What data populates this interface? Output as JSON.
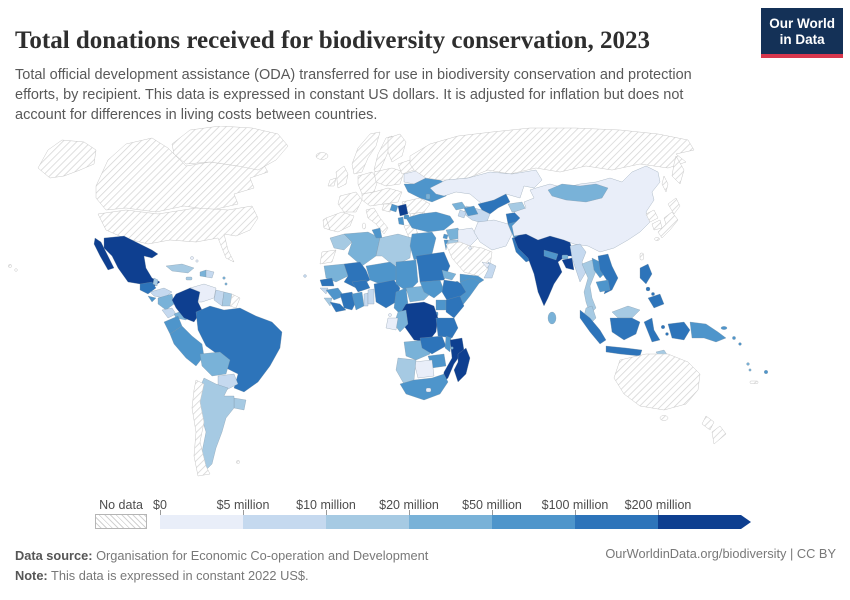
{
  "header": {
    "title": "Total donations received for biodiversity conservation, 2023",
    "subtitle": "Total official development assistance (ODA) transferred for use in biodiversity conservation and protection efforts, by recipient. This data is expressed in constant US dollars. It is adjusted for inflation but does not account for differences in living costs between countries.",
    "logo": {
      "line1": "Our World",
      "line2": "in Data",
      "bg_color": "#143157",
      "accent_color": "#d8374d"
    }
  },
  "footer": {
    "source_label": "Data source:",
    "source_text": " Organisation for Economic Co-operation and Development",
    "note_label": "Note:",
    "note_text": " This data is expressed in constant 2022 US$.",
    "link": "OurWorldinData.org/biodiversity | CC BY"
  },
  "chart_data": {
    "type": "choropleth",
    "title": "Total donations received for biodiversity conservation, 2023",
    "year": "2023",
    "unit": "constant 2022 US$",
    "projection": "world equirectangular",
    "legend": {
      "no_data_label": "No data",
      "no_data_style": "diagonal-hatch",
      "bins": [
        {
          "label": "$0",
          "min_usd": 0,
          "color": "#e9eef9"
        },
        {
          "label": "$5 million",
          "min_usd": 5000000,
          "color": "#c5d9ef"
        },
        {
          "label": "$10 million",
          "min_usd": 10000000,
          "color": "#a6cae3"
        },
        {
          "label": "$20 million",
          "min_usd": 20000000,
          "color": "#79b2d8"
        },
        {
          "label": "$50 million",
          "min_usd": 50000000,
          "color": "#4e95cb"
        },
        {
          "label": "$100 million",
          "min_usd": 100000000,
          "color": "#2d74ba"
        },
        {
          "label": "$200 million",
          "min_usd": 200000000,
          "color": "#0e3f90"
        }
      ]
    },
    "countries": {
      "United States": -1,
      "Canada": -1,
      "Greenland": -1,
      "Iceland": -1,
      "Norway": -1,
      "Sweden": -1,
      "Finland": -1,
      "Denmark": -1,
      "United Kingdom": -1,
      "Ireland": -1,
      "France": -1,
      "Spain": -1,
      "Portugal": -1,
      "Germany": -1,
      "Poland": -1,
      "Central Europe": -1,
      "Croatia": -1,
      "Baltic states": -1,
      "Italy": -1,
      "Greece": -1,
      "Romania": -1,
      "Bulgaria": -1,
      "Russia": -1,
      "Saudi Arabia": -1,
      "Japan": -1,
      "North Korea": -1,
      "South Korea": -1,
      "Taiwan": -1,
      "Australia": -1,
      "New Zealand": -1,
      "Chile": -1,
      "French Guiana": -1,
      "Western Sahara": -1,
      "New Caledonia": -1,
      "Falkland Islands": -1,
      "Kazakhstan": 0,
      "China": 0,
      "Iran": 0,
      "Iraq": 0,
      "Venezuela": 0,
      "Botswana": 0,
      "Gabon": 0,
      "Equatorial Guinea": 0,
      "Belarus": 0,
      "United Arab Emirates": 0,
      "Kuwait": 0,
      "Lesotho": 0,
      "Bahamas": 0,
      "Turkmenistan": 1,
      "Myanmar": 1,
      "Honduras": 1,
      "Costa Rica": 1,
      "Dominican Republic": 1,
      "Guyana": 1,
      "Paraguay": 1,
      "Oman": 1,
      "Guinea-Bissau": 1,
      "Togo": 1,
      "Benin": 1,
      "Armenia": 1,
      "Cape Verde": 1,
      "Morocco": 2,
      "Libya": 2,
      "Cuba": 2,
      "Jamaica": 2,
      "Trinidad and Tobago": 2,
      "Suriname": 2,
      "Uruguay": 2,
      "Argentina": 2,
      "Namibia": 2,
      "Sierra Leone": 2,
      "Thailand": 2,
      "Malaysia": 2,
      "Kyrgyzstan": 2,
      "Belize": 2,
      "Timor-Leste": 2,
      "Jordan": 2,
      "Algeria": 3,
      "Mauritania": 3,
      "Syria": 3,
      "Georgia": 3,
      "Moldova": 3,
      "Bolivia": 3,
      "Nicaragua": 3,
      "Panama": 3,
      "Haiti": 3,
      "Bhutan": 3,
      "Sri Lanka": 3,
      "Mongolia": 3,
      "Central African Republic": 3,
      "Republic of the Congo": 3,
      "Angola": 3,
      "Eritrea": 3,
      "Burundi": 3,
      "Comoros": 3,
      "Vanuatu": 3,
      "Tunisia": 4,
      "Egypt": 4,
      "Turkey": 4,
      "Ukraine": 4,
      "Azerbaijan": 4,
      "Lebanon": 4,
      "Israel": 4,
      "Yemen": 4,
      "Afghanistan": 4,
      "Nepal": 4,
      "Laos": 4,
      "Cambodia": 4,
      "Niger": 4,
      "Chad": 4,
      "South Sudan": 4,
      "Somalia": 4,
      "Djibouti": 4,
      "Uganda": 4,
      "Rwanda": 4,
      "Ghana": 4,
      "Guinea": 4,
      "Cameroon": 4,
      "Malawi": 4,
      "Zimbabwe": 4,
      "South Africa": 4,
      "El Salvador": 4,
      "Bosnia and Herzegovina": 4,
      "Albania": 4,
      "North Macedonia": 4,
      "Papua New Guinea": 4,
      "Solomon Islands": 4,
      "Fiji": 4,
      "Ecuador": 4,
      "Peru": 4,
      "Guatemala": 5,
      "Brazil": 5,
      "Pakistan": 5,
      "Uzbekistan": 5,
      "Tajikistan": 5,
      "Vietnam": 5,
      "Indonesia": 5,
      "Philippines": 5,
      "Mali": 5,
      "Senegal": 5,
      "Burkina Faso": 5,
      "Cote d'Ivoire": 5,
      "Liberia": 5,
      "Nigeria": 5,
      "Sudan": 5,
      "Ethiopia": 5,
      "Kenya": 5,
      "Tanzania": 5,
      "Zambia": 5,
      "Mexico": 6,
      "Colombia": 6,
      "India": 6,
      "Bangladesh": 6,
      "Democratic Republic of Congo": 6,
      "Mozambique": 6,
      "Madagascar": 6,
      "Serbia": 6
    }
  }
}
